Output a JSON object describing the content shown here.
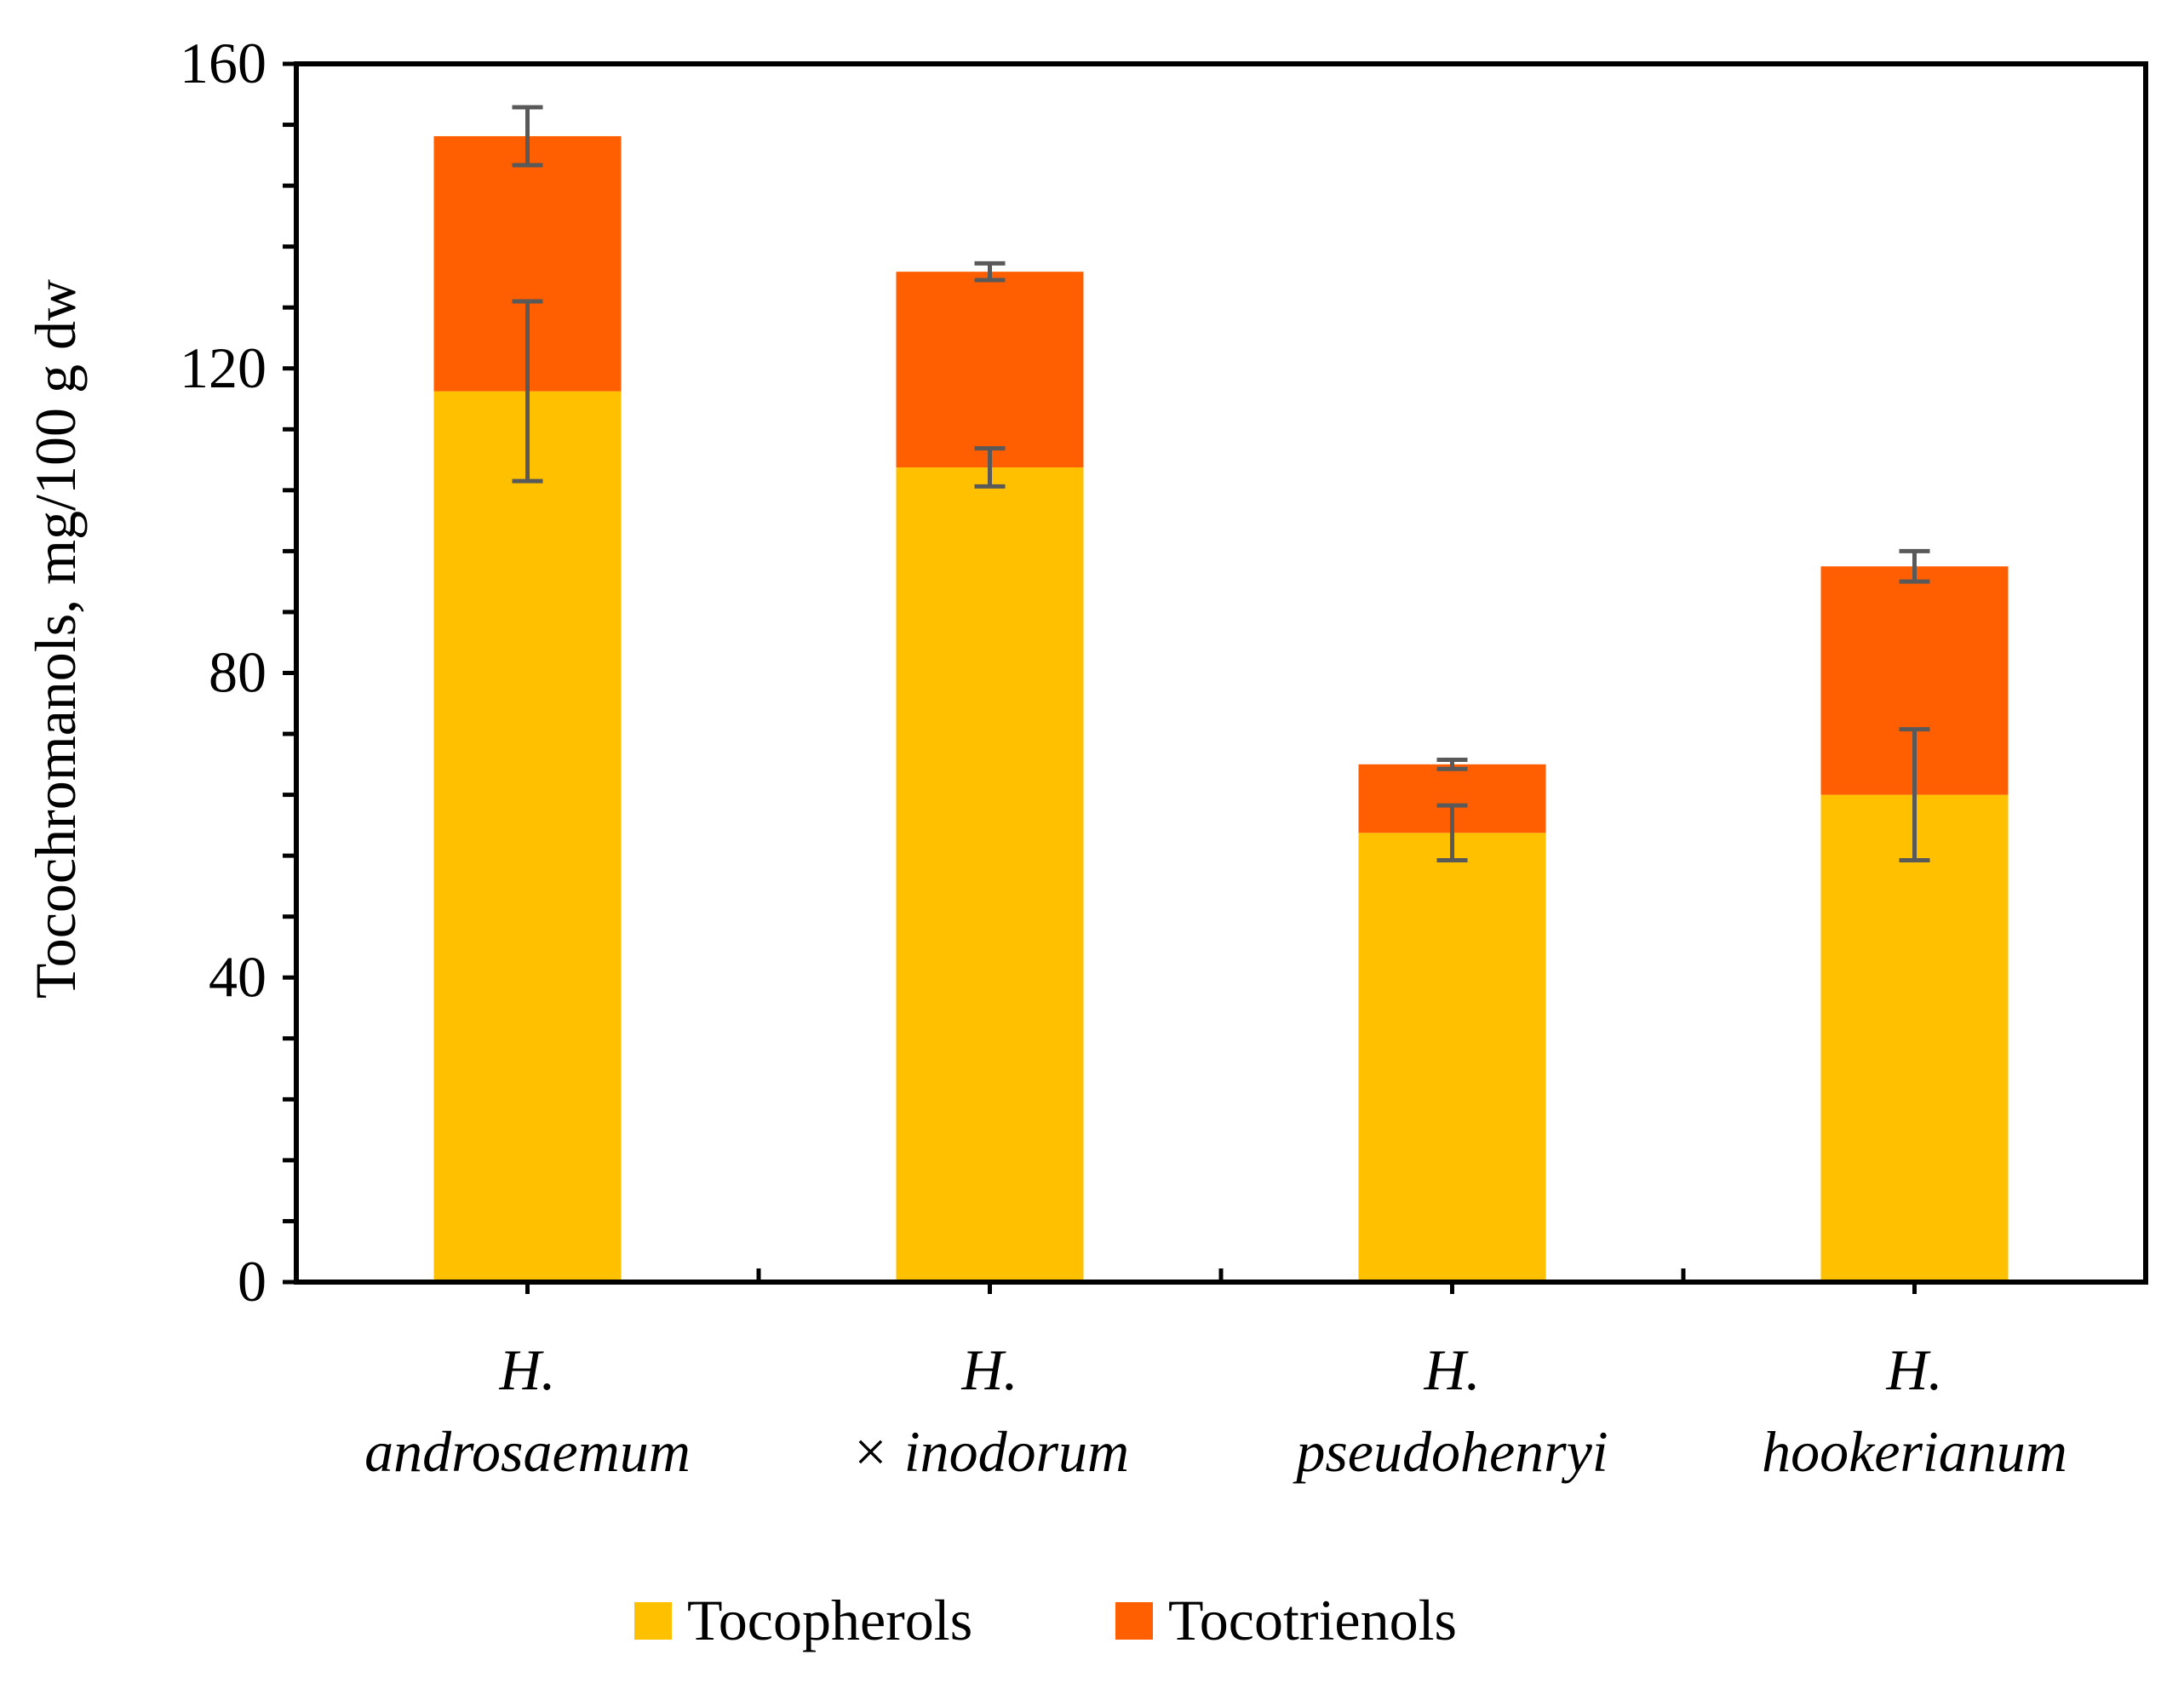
{
  "chart_data": {
    "type": "bar",
    "stacked": true,
    "title": "",
    "xlabel": "",
    "ylabel": "Tocochromanols, mg/100 g dw",
    "ylim": [
      0,
      160
    ],
    "yticks": [
      "0",
      "40",
      "80",
      "120",
      "160"
    ],
    "categories": [
      {
        "line1": "H.",
        "line2": "androsaemum"
      },
      {
        "line1": "H.",
        "line2": "× inodorum"
      },
      {
        "line1": "H.",
        "line2": "pseudohenryi"
      },
      {
        "line1": "H.",
        "line2": "hookerianum"
      }
    ],
    "series": [
      {
        "name": "Tocopherols",
        "color": "#FFC000",
        "values": [
          117,
          107,
          59,
          64
        ],
        "errors": [
          11.8,
          2.5,
          3.6,
          8.6
        ]
      },
      {
        "name": "Tocotrienols",
        "color": "#FF5F00",
        "values": [
          33.5,
          25.7,
          9.0,
          30.0
        ],
        "errors": [
          3.8,
          1.1,
          0.6,
          2.0
        ]
      }
    ],
    "error_bar_color": "#595959",
    "legend_position": "bottom"
  }
}
